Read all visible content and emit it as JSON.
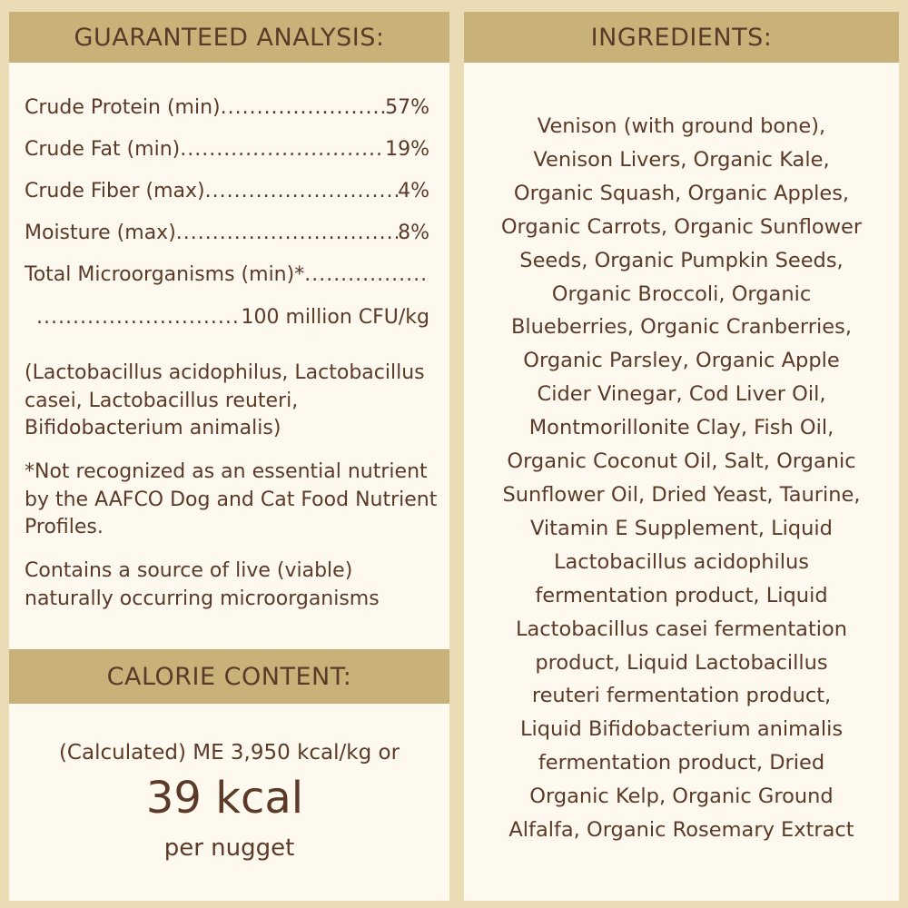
{
  "analysis": {
    "title": "GUARANTEED ANALYSIS:",
    "rows": [
      {
        "label": "Crude Protein (min)",
        "value": "57%"
      },
      {
        "label": "Crude Fat (min)",
        "value": " 19%"
      },
      {
        "label": "Crude Fiber (max)",
        "value": "4%"
      },
      {
        "label": "Moisture (max)",
        "value": "8%"
      },
      {
        "label": "Total Microorganisms (min)*",
        "value": ""
      },
      {
        "label": "",
        "value": "100 million CFU/kg"
      }
    ],
    "strains": "(Lactobacillus acidophilus, Lactobacillus casei, Lactobacillus reuteri, Bifidobacterium animalis)",
    "footnote": "*Not recognized as an essential nutrient by the AAFCO Dog and Cat Food Nutrient Profiles.",
    "live_note": "Contains a source of live (viable) naturally occurring microorganisms"
  },
  "calorie": {
    "title": "CALORIE CONTENT:",
    "line1": "(Calculated) ME 3,950 kcal/kg or",
    "big": "39 kcal",
    "line3": "per nugget"
  },
  "ingredients": {
    "title": "INGREDIENTS:",
    "lines": [
      "Venison (with ground bone),",
      "Venison Livers, Organic Kale,",
      "Organic Squash, Organic Apples,",
      "Organic Carrots, Organic Sunflower",
      "Seeds, Organic Pumpkin Seeds,",
      "Organic Broccoli, Organic",
      "Blueberries, Organic Cranberries,",
      "Organic Parsley, Organic Apple",
      "Cider Vinegar, Cod Liver Oil,",
      "Montmorillonite Clay, Fish Oil,",
      "Organic Coconut Oil, Salt, Organic",
      "Sunflower Oil, Dried Yeast, Taurine,",
      "Vitamin E Supplement, Liquid",
      "Lactobacillus acidophilus",
      "fermentation product, Liquid",
      "Lactobacillus casei fermentation",
      "product, Liquid Lactobacillus",
      "reuteri fermentation product,",
      "Liquid Bifidobacterium animalis",
      "fermentation product, Dried",
      "Organic Kelp, Organic Ground",
      "Alfalfa, Organic Rosemary Extract"
    ]
  },
  "colors": {
    "background": "#eadcb4",
    "header_band": "#c8b27a",
    "panel": "#fdf9ef",
    "text": "#5b3a28"
  }
}
